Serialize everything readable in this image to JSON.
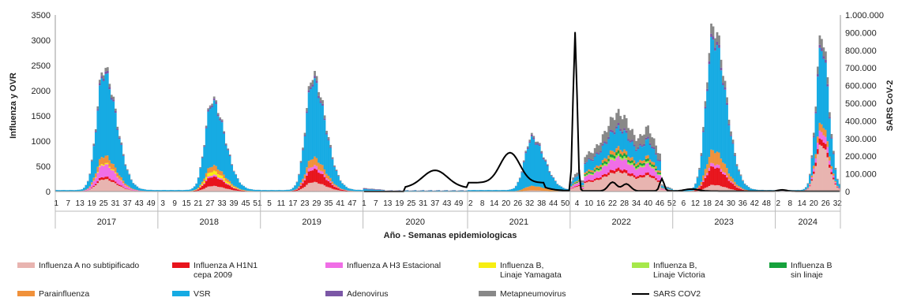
{
  "chart_data": {
    "type": "bar",
    "stacked": true,
    "title": "",
    "xlabel": "Año - Semanas epidemiologicas",
    "ylabel": "Influenza y OVR",
    "y2label": "SARS CoV-2",
    "ylim": [
      0,
      3500
    ],
    "y2lim": [
      0,
      1000000
    ],
    "yticks": [
      "0",
      "500",
      "1000",
      "1500",
      "2000",
      "2500",
      "3000",
      "3500"
    ],
    "y2ticks": [
      "0",
      "100.000",
      "200.000",
      "300.000",
      "400.000",
      "500.000",
      "600.000",
      "700.000",
      "800.000",
      "900.000",
      "1.000.000"
    ],
    "years": [
      {
        "label": "2017",
        "weeks": [
          "1",
          "7",
          "13",
          "19",
          "25",
          "31",
          "37",
          "43",
          "49"
        ]
      },
      {
        "label": "2018",
        "weeks": [
          "3",
          "9",
          "15",
          "21",
          "27",
          "33",
          "39",
          "45",
          "51"
        ]
      },
      {
        "label": "2019",
        "weeks": [
          "5",
          "11",
          "17",
          "23",
          "29",
          "35",
          "41",
          "47"
        ]
      },
      {
        "label": "2020",
        "weeks": [
          "1",
          "7",
          "13",
          "19",
          "25",
          "31",
          "37",
          "43",
          "49"
        ]
      },
      {
        "label": "2021",
        "weeks": [
          "2",
          "8",
          "14",
          "20",
          "26",
          "32",
          "38",
          "44",
          "50"
        ]
      },
      {
        "label": "2022",
        "weeks": [
          "4",
          "10",
          "16",
          "22",
          "28",
          "34",
          "40",
          "46",
          "52"
        ]
      },
      {
        "label": "2023",
        "weeks": [
          "6",
          "12",
          "18",
          "24",
          "30",
          "36",
          "42",
          "48"
        ]
      },
      {
        "label": "2024",
        "weeks": [
          "2",
          "8",
          "14",
          "20",
          "26",
          "32"
        ]
      }
    ],
    "series": [
      {
        "name": "Influenza A no subtipificado",
        "color": "#e8b4b0"
      },
      {
        "name": "Influenza A H1N1\ncepa 2009",
        "color": "#e8141c"
      },
      {
        "name": "Influenza A H3 Estacional",
        "color": "#f06ee6"
      },
      {
        "name": "Influenza B,\nLinaje Yamagata",
        "color": "#f7ee12"
      },
      {
        "name": "Influenza B,\nLinaje Victoria",
        "color": "#a6e84a"
      },
      {
        "name": "Influenza B\nsin linaje",
        "color": "#16a23c"
      },
      {
        "name": "Parainfluenza",
        "color": "#f0913a"
      },
      {
        "name": "VSR",
        "color": "#16abe3"
      },
      {
        "name": "Adenovirus",
        "color": "#7b57a6"
      },
      {
        "name": "Metapneumovirus",
        "color": "#888888"
      },
      {
        "name": "SARS COV2",
        "color": "#000000",
        "type": "line",
        "axis": "right"
      }
    ],
    "seasonal_peaks": [
      {
        "year": "2017",
        "approx_peak_total": 2450,
        "approx_peak_week": 25
      },
      {
        "year": "2018",
        "approx_peak_total": 1830,
        "approx_peak_week": 28
      },
      {
        "year": "2019",
        "approx_peak_total": 2320,
        "approx_peak_week": 27
      },
      {
        "year": "2021",
        "approx_peak_total": 1100,
        "approx_peak_week": 33
      },
      {
        "year": "2022",
        "approx_peak_total": 1680,
        "approx_peak_week": 25
      },
      {
        "year": "2023",
        "approx_peak_total": 3270,
        "approx_peak_week": 21
      },
      {
        "year": "2024",
        "approx_peak_total": 3120,
        "approx_peak_week": 24
      }
    ],
    "sars_cov2_peaks": [
      {
        "year": "2020",
        "week": 37,
        "value": 100000
      },
      {
        "year": "2021",
        "week": 23,
        "value": 225000
      },
      {
        "year": "2022",
        "week": 3,
        "value": 900000
      },
      {
        "year": "2022",
        "week": 47,
        "value": 70000
      }
    ]
  }
}
